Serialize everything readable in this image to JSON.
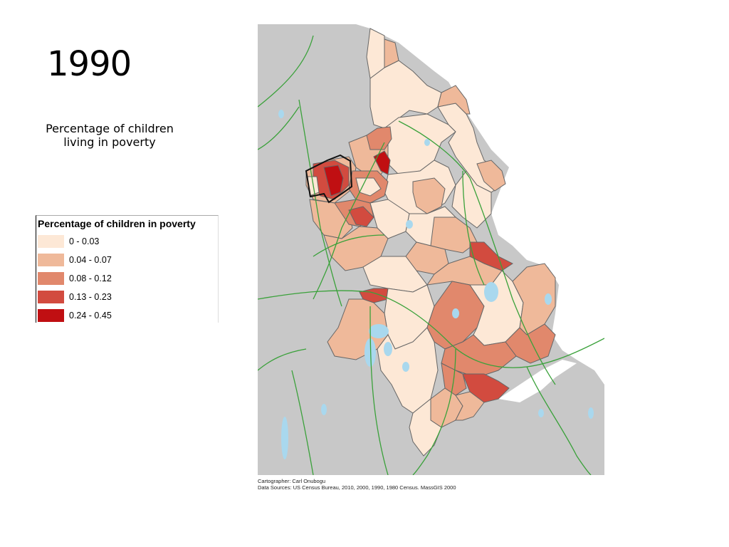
{
  "slide": {
    "title": "1990",
    "subtitle": "Percentage of children living in poverty"
  },
  "legend": {
    "title": "Percentage of children in poverty",
    "classes": [
      {
        "label": "0 - 0.03",
        "color": "#fde8d6"
      },
      {
        "label": "0.04 - 0.07",
        "color": "#efb99a"
      },
      {
        "label": "0.08 - 0.12",
        "color": "#e1886c"
      },
      {
        "label": "0.13 - 0.23",
        "color": "#d24b3f"
      },
      {
        "label": "0.24 - 0.45",
        "color": "#c00f12"
      }
    ]
  },
  "map": {
    "background_color": "#c8c8c8",
    "water_color": "#a9d8ee",
    "road_color": "#3aa13a",
    "town_border_color": "#666666"
  },
  "credits": {
    "cartographer": "Cartographer: Carl Onubogu",
    "sources": "Data Sources: US Census Bureau, 2010, 2000, 1990, 1980 Census. MassGIS 2000"
  }
}
